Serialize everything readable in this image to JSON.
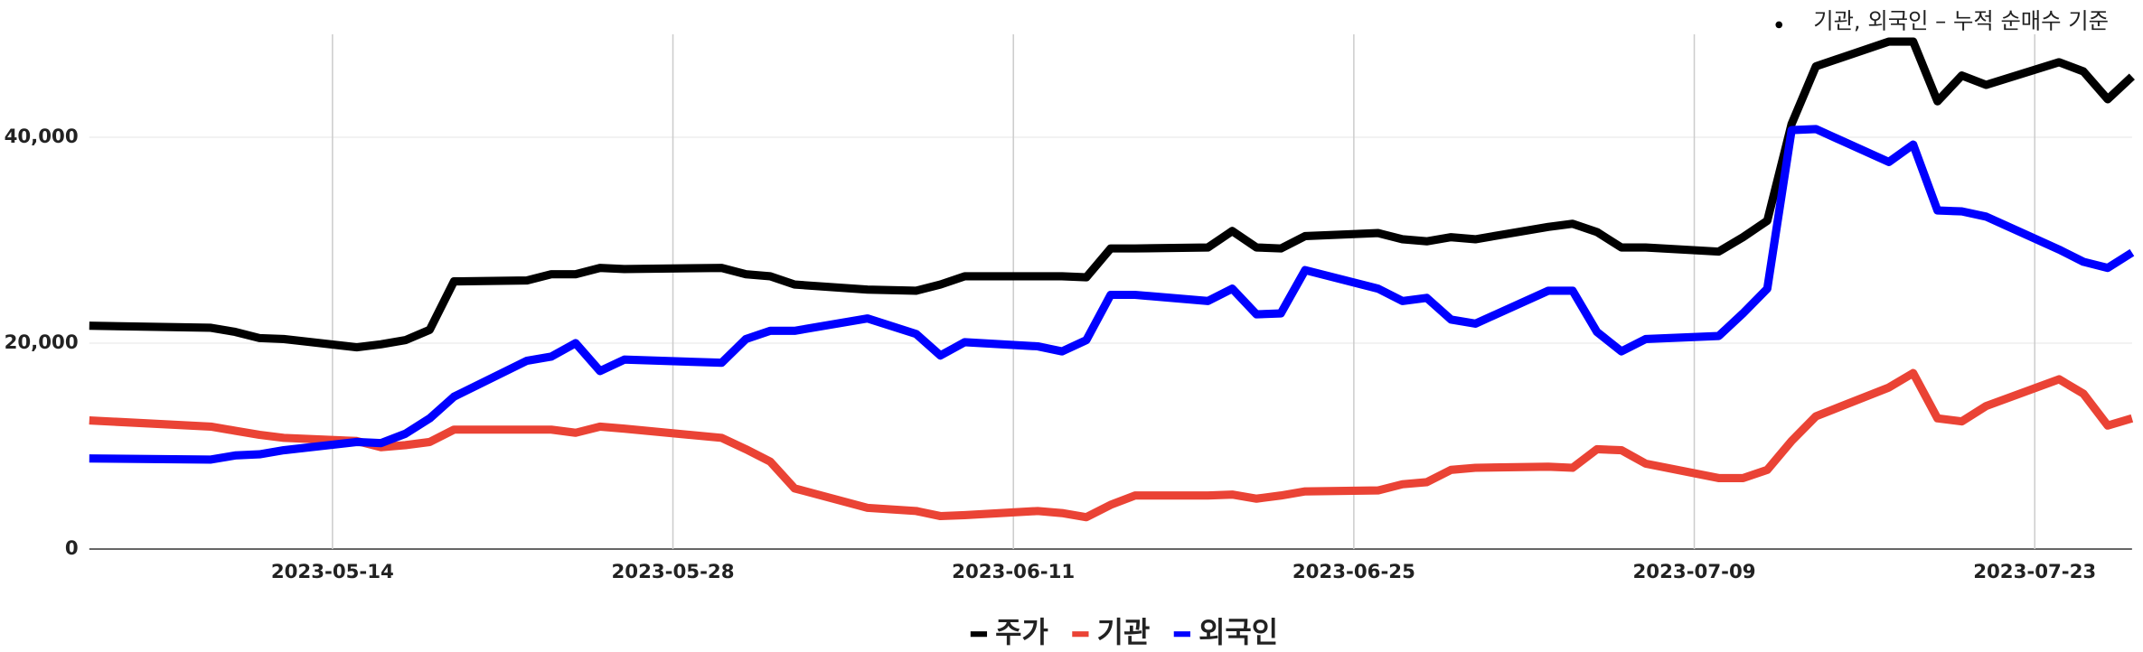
{
  "chart_data": {
    "type": "line",
    "annotation": "기관, 외국인 – 누적 순매수 기준",
    "x": [
      "2023-05-04",
      "2023-05-09",
      "2023-05-10",
      "2023-05-11",
      "2023-05-12",
      "2023-05-15",
      "2023-05-16",
      "2023-05-17",
      "2023-05-18",
      "2023-05-19",
      "2023-05-22",
      "2023-05-23",
      "2023-05-24",
      "2023-05-25",
      "2023-05-26",
      "2023-05-30",
      "2023-05-31",
      "2023-06-01",
      "2023-06-02",
      "2023-06-05",
      "2023-06-07",
      "2023-06-08",
      "2023-06-09",
      "2023-06-12",
      "2023-06-13",
      "2023-06-14",
      "2023-06-15",
      "2023-06-16",
      "2023-06-19",
      "2023-06-20",
      "2023-06-21",
      "2023-06-22",
      "2023-06-23",
      "2023-06-26",
      "2023-06-27",
      "2023-06-28",
      "2023-06-29",
      "2023-06-30",
      "2023-07-03",
      "2023-07-04",
      "2023-07-05",
      "2023-07-06",
      "2023-07-07",
      "2023-07-10",
      "2023-07-11",
      "2023-07-12",
      "2023-07-13",
      "2023-07-14",
      "2023-07-17",
      "2023-07-18",
      "2023-07-19",
      "2023-07-20",
      "2023-07-21",
      "2023-07-24",
      "2023-07-25",
      "2023-07-26",
      "2023-07-27"
    ],
    "series": [
      {
        "name": "주가",
        "color": "#000000",
        "values": [
          21700,
          21500,
          21100,
          20500,
          20400,
          19600,
          19900,
          20300,
          21300,
          26000,
          26100,
          26700,
          26700,
          27300,
          27200,
          27300,
          26700,
          26500,
          25700,
          25200,
          25100,
          25700,
          26500,
          26500,
          26500,
          26400,
          29200,
          29200,
          29300,
          30900,
          29300,
          29200,
          30400,
          30700,
          30100,
          29900,
          30300,
          30100,
          31300,
          31600,
          30800,
          29300,
          29300,
          28900,
          30300,
          31900,
          41300,
          46900,
          49300,
          49300,
          43500,
          46000,
          45100,
          47300,
          46400,
          43700,
          45900
        ]
      },
      {
        "name": "기관",
        "color": "#ea4335",
        "values": [
          12500,
          11900,
          11500,
          11100,
          10800,
          10500,
          9900,
          10100,
          10400,
          11600,
          11600,
          11600,
          11300,
          11900,
          11700,
          10800,
          9700,
          8500,
          5900,
          4000,
          3700,
          3200,
          3300,
          3700,
          3500,
          3100,
          4300,
          5200,
          5200,
          5300,
          4900,
          5200,
          5600,
          5700,
          6300,
          6500,
          7700,
          7900,
          8000,
          7900,
          9700,
          9600,
          8300,
          6900,
          6900,
          7700,
          10500,
          12900,
          15700,
          17100,
          12700,
          12400,
          13900,
          16500,
          15100,
          12000,
          12700
        ]
      },
      {
        "name": "외국인",
        "color": "#0000ff",
        "values": [
          8800,
          8700,
          9100,
          9200,
          9600,
          10400,
          10300,
          11200,
          12700,
          14800,
          18300,
          18700,
          20000,
          17300,
          18400,
          18100,
          20400,
          21200,
          21200,
          22400,
          20900,
          18800,
          20100,
          19700,
          19200,
          20300,
          24700,
          24700,
          24100,
          25300,
          22800,
          22900,
          27100,
          25300,
          24100,
          24400,
          22300,
          21900,
          25100,
          25100,
          21100,
          19200,
          20400,
          20700,
          22900,
          25300,
          40700,
          40800,
          37600,
          39300,
          32900,
          32800,
          32300,
          29100,
          27900,
          27300,
          28800
        ]
      }
    ],
    "xlim": [
      "2023-05-04",
      "2023-07-27"
    ],
    "xticks": [
      "2023-05-14",
      "2023-05-28",
      "2023-06-11",
      "2023-06-25",
      "2023-07-09",
      "2023-07-23"
    ],
    "ylim": [
      0,
      50000
    ],
    "yticks": [
      0,
      {
        "value": 20000,
        "label": "20,000"
      },
      {
        "value": 40000,
        "label": "40,000"
      }
    ],
    "grid": true,
    "legend": "bottom"
  }
}
